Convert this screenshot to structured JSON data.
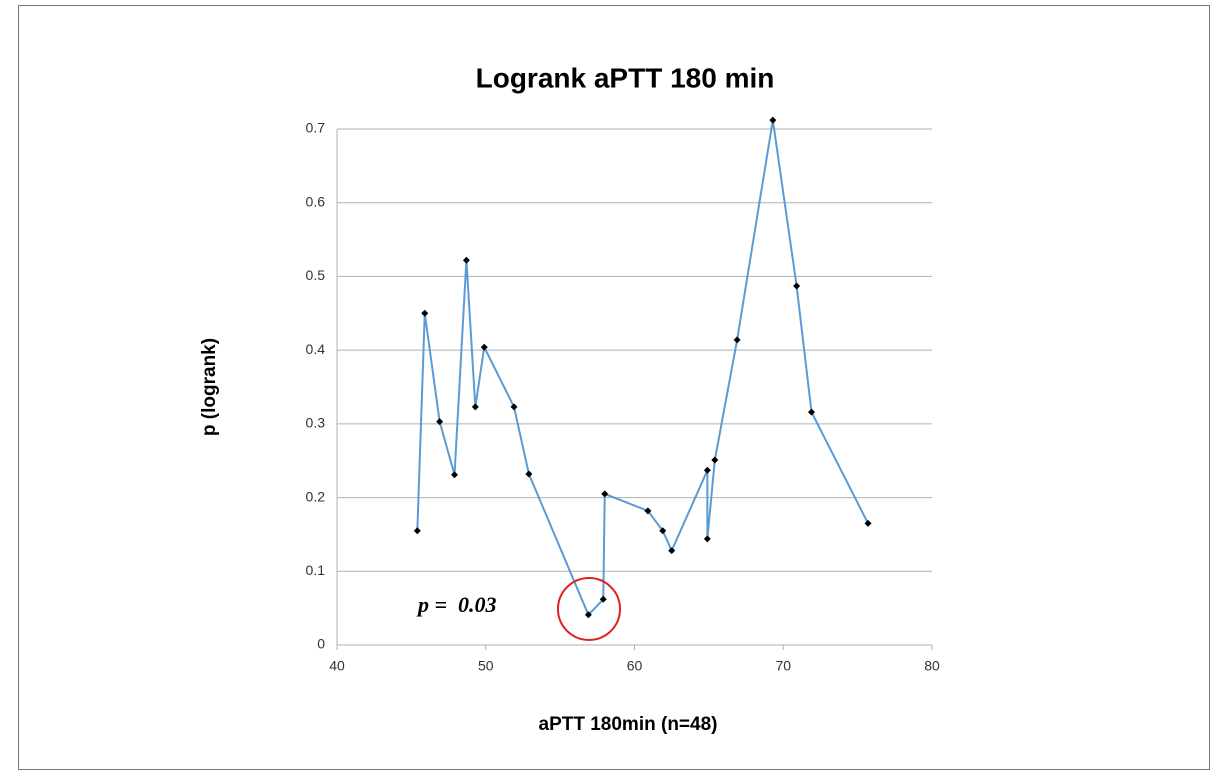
{
  "chart_data": {
    "type": "line",
    "title": "Logrank aPTT 180 min",
    "x_label": "aPTT 180min (n=48)",
    "y_label": "p (logrank)",
    "annotation": "p =  0.03",
    "x": [
      45.4,
      45.9,
      46.9,
      47.9,
      48.7,
      49.3,
      49.9,
      51.9,
      52.9,
      56.9,
      57.9,
      58.0,
      60.9,
      61.9,
      62.5,
      64.9,
      64.9,
      65.4,
      66.9,
      69.3,
      70.9,
      71.9,
      75.7
    ],
    "series": [
      {
        "name": "p",
        "color": "#5b9bd5",
        "values": [
          0.155,
          0.45,
          0.303,
          0.231,
          0.522,
          0.323,
          0.404,
          0.323,
          0.232,
          0.041,
          0.062,
          0.205,
          0.182,
          0.155,
          0.128,
          0.237,
          0.144,
          0.251,
          0.414,
          0.712,
          0.487,
          0.316,
          0.165
        ]
      }
    ],
    "xlim": [
      40,
      80
    ],
    "xticks": [
      40,
      50,
      60,
      70,
      80
    ],
    "ylim": [
      0,
      0.7
    ],
    "yticks": [
      0,
      0.1,
      0.2,
      0.3,
      0.4,
      0.5,
      0.6,
      0.7
    ],
    "grid": true
  }
}
